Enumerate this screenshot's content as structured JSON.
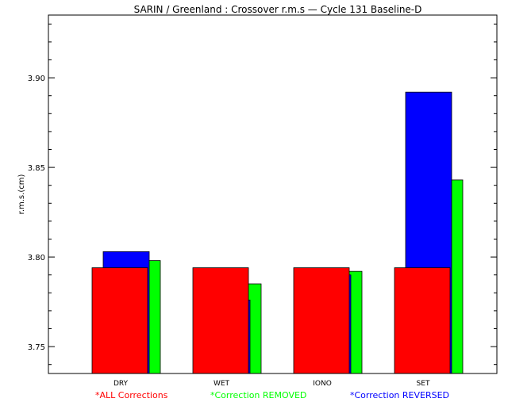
{
  "chart_data": {
    "type": "bar",
    "title": "SARIN / Greenland : Crossover r.m.s — Cycle 131 Baseline-D",
    "xlabel": "",
    "ylabel": "r.m.s.(cm)",
    "categories": [
      "DRY",
      "WET",
      "IONO",
      "SET"
    ],
    "ylim": [
      3.735,
      3.935
    ],
    "yticks": [
      3.75,
      3.8,
      3.85,
      3.9
    ],
    "ytick_labels": [
      "3.75",
      "3.80",
      "3.85",
      "3.90"
    ],
    "series": [
      {
        "name": "ALL Corrections",
        "marker": "*",
        "color": "#ff0000",
        "values": [
          3.794,
          3.794,
          3.794,
          3.794
        ]
      },
      {
        "name": "Correction REMOVED",
        "marker": "*",
        "color": "#00ff00",
        "values": [
          3.798,
          3.785,
          3.792,
          3.843
        ]
      },
      {
        "name": "Correction REVERSED",
        "marker": "*",
        "color": "#0000ff",
        "values": [
          3.803,
          3.776,
          3.79,
          3.892
        ]
      }
    ]
  }
}
